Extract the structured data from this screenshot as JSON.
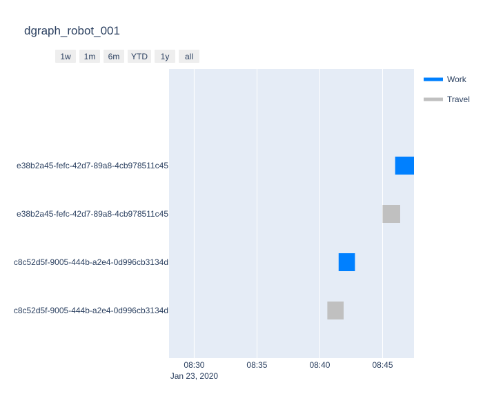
{
  "chart_data": {
    "type": "gantt",
    "title": "dgraph_robot_001",
    "range_buttons": [
      "1w",
      "1m",
      "6m",
      "YTD",
      "1y",
      "all"
    ],
    "x_axis": {
      "ticks": [
        "08:30",
        "08:35",
        "08:40",
        "08:45"
      ],
      "date_label": "Jan 23, 2020",
      "range": [
        "08:28",
        "08:47.5"
      ]
    },
    "rows": [
      "e38b2a45-fefc-42d7-89a8-4cb978511c45",
      "e38b2a45-fefc-42d7-89a8-4cb978511c45",
      "c8c52d5f-9005-444b-a2e4-0d996cb3134d",
      "c8c52d5f-9005-444b-a2e4-0d996cb3134d"
    ],
    "tasks": [
      {
        "row": 0,
        "type": "Work",
        "start": "08:46.0",
        "end": "08:47.5"
      },
      {
        "row": 1,
        "type": "Travel",
        "start": "08:45.0",
        "end": "08:46.4"
      },
      {
        "row": 2,
        "type": "Work",
        "start": "08:41.5",
        "end": "08:42.8"
      },
      {
        "row": 3,
        "type": "Travel",
        "start": "08:40.6",
        "end": "08:41.9"
      }
    ],
    "legend": [
      {
        "name": "Work",
        "color": "#0080ff"
      },
      {
        "name": "Travel",
        "color": "#c0c0c0"
      }
    ],
    "legend_position": "top-right",
    "grid": true,
    "colors": {
      "plot_bg": "#e5ecf6",
      "grid": "#ffffff",
      "text": "#2a3f5f",
      "button_bg": "#eeeeee"
    }
  }
}
